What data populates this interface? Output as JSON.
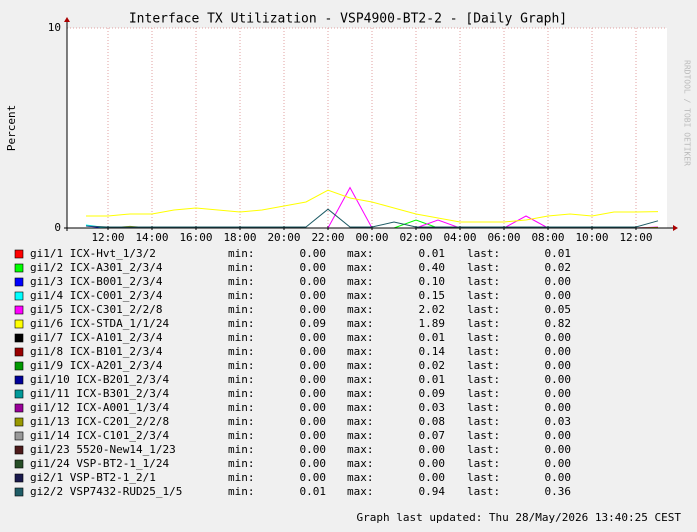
{
  "chart_data": {
    "type": "line",
    "title": "Interface TX Utilization - VSP4900-BT2-2 - [Daily Graph]",
    "y_label": "Percent",
    "watermark": "RRDTOOL / TOBI OETIKER",
    "footer": "Graph last updated: Thu 28/May/2026 13:40:25 CEST",
    "stat_names": [
      "min:",
      "max:",
      "last:"
    ],
    "categories": [
      null,
      "12:00",
      null,
      "14:00",
      null,
      "16:00",
      null,
      "18:00",
      null,
      "20:00",
      null,
      "22:00",
      null,
      "00:00",
      null,
      "02:00",
      null,
      "04:00",
      null,
      "06:00",
      null,
      "08:00",
      null,
      "10:00",
      null,
      "12:00",
      null
    ],
    "ylim": [
      0,
      10
    ],
    "yticks": [
      0,
      10
    ],
    "grid": true,
    "series": [
      {
        "name": "gi1/1 ICX-Hvt_1/3/2",
        "color": "#ff0000",
        "stats": [
          0,
          0.01,
          0.01
        ],
        "stats_labels": [
          "0.00",
          "0.01",
          "0.01"
        ],
        "values": [
          0,
          0,
          0,
          0,
          0,
          0,
          0,
          0,
          0,
          0,
          0,
          0,
          0,
          0,
          0,
          0,
          0,
          0,
          0,
          0,
          0,
          0,
          0,
          0,
          0,
          0,
          0.01
        ]
      },
      {
        "name": "gi1/2 ICX-A301_2/3/4",
        "color": "#00ff00",
        "stats": [
          0,
          0.4,
          0.02
        ],
        "stats_labels": [
          "0.00",
          "0.40",
          "0.02"
        ],
        "values": [
          0,
          0,
          0,
          0,
          0,
          0,
          0,
          0,
          0,
          0,
          0,
          0,
          0,
          0,
          0,
          0.4,
          0,
          0,
          0,
          0,
          0,
          0,
          0,
          0,
          0,
          0,
          0.02
        ]
      },
      {
        "name": "gi1/3 ICX-B001_2/3/4",
        "color": "#0000ff",
        "stats": [
          0,
          0.1,
          0
        ],
        "stats_labels": [
          "0.00",
          "0.10",
          "0.00"
        ],
        "values": [
          0.1,
          0,
          0,
          0,
          0,
          0,
          0,
          0,
          0,
          0,
          0,
          0,
          0,
          0,
          0,
          0,
          0,
          0,
          0,
          0,
          0,
          0,
          0,
          0,
          0,
          0,
          0
        ]
      },
      {
        "name": "gi1/4 ICX-C001_2/3/4",
        "color": "#00ffff",
        "stats": [
          0,
          0.15,
          0
        ],
        "stats_labels": [
          "0.00",
          "0.15",
          "0.00"
        ],
        "values": [
          0.15,
          0,
          0,
          0,
          0,
          0,
          0,
          0,
          0,
          0,
          0,
          0,
          0,
          0,
          0,
          0,
          0,
          0,
          0,
          0,
          0,
          0,
          0,
          0,
          0,
          0,
          0
        ]
      },
      {
        "name": "gi1/5 ICX-C301_2/2/8",
        "color": "#ff00ff",
        "stats": [
          0,
          2.02,
          0.05
        ],
        "stats_labels": [
          "0.00",
          "2.02",
          "0.05"
        ],
        "values": [
          0,
          0,
          0,
          0,
          0,
          0,
          0,
          0,
          0,
          0,
          0,
          0,
          2.02,
          0,
          0,
          0,
          0.4,
          0,
          0,
          0,
          0.6,
          0,
          0,
          0,
          0,
          0,
          0.05
        ]
      },
      {
        "name": "gi1/6 ICX-STDA_1/1/24",
        "color": "#ffff00",
        "stats": [
          0.09,
          1.89,
          0.82
        ],
        "stats_labels": [
          "0.09",
          "1.89",
          "0.82"
        ],
        "values": [
          0.6,
          0.6,
          0.7,
          0.7,
          0.9,
          1.0,
          0.9,
          0.8,
          0.9,
          1.1,
          1.3,
          1.89,
          1.5,
          1.3,
          1.0,
          0.7,
          0.5,
          0.3,
          0.3,
          0.3,
          0.4,
          0.6,
          0.7,
          0.6,
          0.8,
          0.8,
          0.82
        ]
      },
      {
        "name": "gi1/7 ICX-A101_2/3/4",
        "color": "#000000",
        "stats": [
          0,
          0.01,
          0
        ],
        "stats_labels": [
          "0.00",
          "0.01",
          "0.00"
        ],
        "values": [
          0,
          0,
          0,
          0,
          0,
          0,
          0,
          0,
          0,
          0,
          0,
          0,
          0,
          0,
          0,
          0,
          0,
          0,
          0,
          0,
          0,
          0,
          0,
          0,
          0,
          0,
          0
        ]
      },
      {
        "name": "gi1/8 ICX-B101_2/3/4",
        "color": "#990000",
        "stats": [
          0,
          0.14,
          0
        ],
        "stats_labels": [
          "0.00",
          "0.14",
          "0.00"
        ],
        "values": [
          0,
          0,
          0,
          0,
          0,
          0,
          0,
          0,
          0,
          0,
          0,
          0,
          0,
          0,
          0,
          0,
          0,
          0,
          0,
          0,
          0,
          0,
          0,
          0,
          0,
          0,
          0
        ]
      },
      {
        "name": "gi1/9 ICX-A201_2/3/4",
        "color": "#009900",
        "stats": [
          0,
          0.02,
          0
        ],
        "stats_labels": [
          "0.00",
          "0.02",
          "0.00"
        ],
        "values": [
          0,
          0,
          0,
          0,
          0,
          0,
          0,
          0,
          0,
          0,
          0,
          0,
          0,
          0,
          0,
          0,
          0,
          0,
          0,
          0,
          0,
          0,
          0,
          0,
          0,
          0,
          0
        ]
      },
      {
        "name": "gi1/10 ICX-B201_2/3/4",
        "color": "#000099",
        "stats": [
          0,
          0.01,
          0
        ],
        "stats_labels": [
          "0.00",
          "0.01",
          "0.00"
        ],
        "values": [
          0,
          0,
          0,
          0,
          0,
          0,
          0,
          0,
          0,
          0,
          0,
          0,
          0,
          0,
          0,
          0,
          0,
          0,
          0,
          0,
          0,
          0,
          0,
          0,
          0,
          0,
          0
        ]
      },
      {
        "name": "gi1/11 ICX-B301_2/3/4",
        "color": "#009999",
        "stats": [
          0,
          0.09,
          0
        ],
        "stats_labels": [
          "0.00",
          "0.09",
          "0.00"
        ],
        "values": [
          0,
          0,
          0,
          0,
          0,
          0,
          0,
          0,
          0,
          0,
          0,
          0,
          0,
          0,
          0,
          0,
          0,
          0,
          0,
          0,
          0,
          0,
          0,
          0,
          0,
          0,
          0
        ]
      },
      {
        "name": "gi1/12 ICX-A001_1/3/4",
        "color": "#990099",
        "stats": [
          0,
          0.03,
          0
        ],
        "stats_labels": [
          "0.00",
          "0.03",
          "0.00"
        ],
        "values": [
          0,
          0,
          0,
          0,
          0,
          0,
          0,
          0,
          0,
          0,
          0,
          0,
          0,
          0,
          0,
          0,
          0,
          0,
          0,
          0,
          0,
          0,
          0,
          0,
          0,
          0,
          0
        ]
      },
      {
        "name": "gi1/13 ICX-C201_2/2/8",
        "color": "#999900",
        "stats": [
          0,
          0.08,
          0.03
        ],
        "stats_labels": [
          "0.00",
          "0.08",
          "0.03"
        ],
        "values": [
          0,
          0,
          0.08,
          0,
          0,
          0,
          0,
          0,
          0,
          0,
          0,
          0,
          0,
          0,
          0,
          0,
          0,
          0,
          0,
          0,
          0,
          0,
          0,
          0,
          0,
          0,
          0.03
        ]
      },
      {
        "name": "gi1/14 ICX-C101_2/3/4",
        "color": "#999999",
        "stats": [
          0,
          0.07,
          0
        ],
        "stats_labels": [
          "0.00",
          "0.07",
          "0.00"
        ],
        "values": [
          0,
          0,
          0,
          0,
          0,
          0,
          0,
          0,
          0,
          0,
          0,
          0,
          0,
          0,
          0,
          0,
          0,
          0,
          0,
          0,
          0,
          0,
          0,
          0,
          0,
          0,
          0
        ]
      },
      {
        "name": "gi1/23 5520-New14_1/23",
        "color": "#4d1a1a",
        "stats": [
          0,
          0,
          0
        ],
        "stats_labels": [
          "0.00",
          "0.00",
          "0.00"
        ],
        "values": [
          0,
          0,
          0,
          0,
          0,
          0,
          0,
          0,
          0,
          0,
          0,
          0,
          0,
          0,
          0,
          0,
          0,
          0,
          0,
          0,
          0,
          0,
          0,
          0,
          0,
          0,
          0
        ]
      },
      {
        "name": "gi1/24 VSP-BT2-1_1/24",
        "color": "#264d26",
        "stats": [
          0,
          0,
          0
        ],
        "stats_labels": [
          "0.00",
          "0.00",
          "0.00"
        ],
        "values": [
          0,
          0,
          0,
          0,
          0,
          0,
          0,
          0,
          0,
          0,
          0,
          0,
          0,
          0,
          0,
          0,
          0,
          0,
          0,
          0,
          0,
          0,
          0,
          0,
          0,
          0,
          0
        ]
      },
      {
        "name": "gi2/1 VSP-BT2-1_2/1",
        "color": "#1a1a4d",
        "stats": [
          0,
          0,
          0
        ],
        "stats_labels": [
          "0.00",
          "0.00",
          "0.00"
        ],
        "values": [
          0,
          0,
          0,
          0,
          0,
          0,
          0,
          0,
          0,
          0,
          0,
          0,
          0,
          0,
          0,
          0,
          0,
          0,
          0,
          0,
          0,
          0,
          0,
          0,
          0,
          0,
          0
        ]
      },
      {
        "name": "gi2/2 VSP7432-RUD25_1/5",
        "color": "#1f5c66",
        "stats": [
          0.01,
          0.94,
          0.36
        ],
        "stats_labels": [
          "0.01",
          "0.94",
          "0.36"
        ],
        "values": [
          0.1,
          0.05,
          0.05,
          0.05,
          0.05,
          0.05,
          0.05,
          0.05,
          0.05,
          0.05,
          0.05,
          0.94,
          0.05,
          0.05,
          0.3,
          0.05,
          0.05,
          0.05,
          0.05,
          0.05,
          0.05,
          0.05,
          0.05,
          0.05,
          0.05,
          0.05,
          0.36
        ]
      }
    ]
  }
}
